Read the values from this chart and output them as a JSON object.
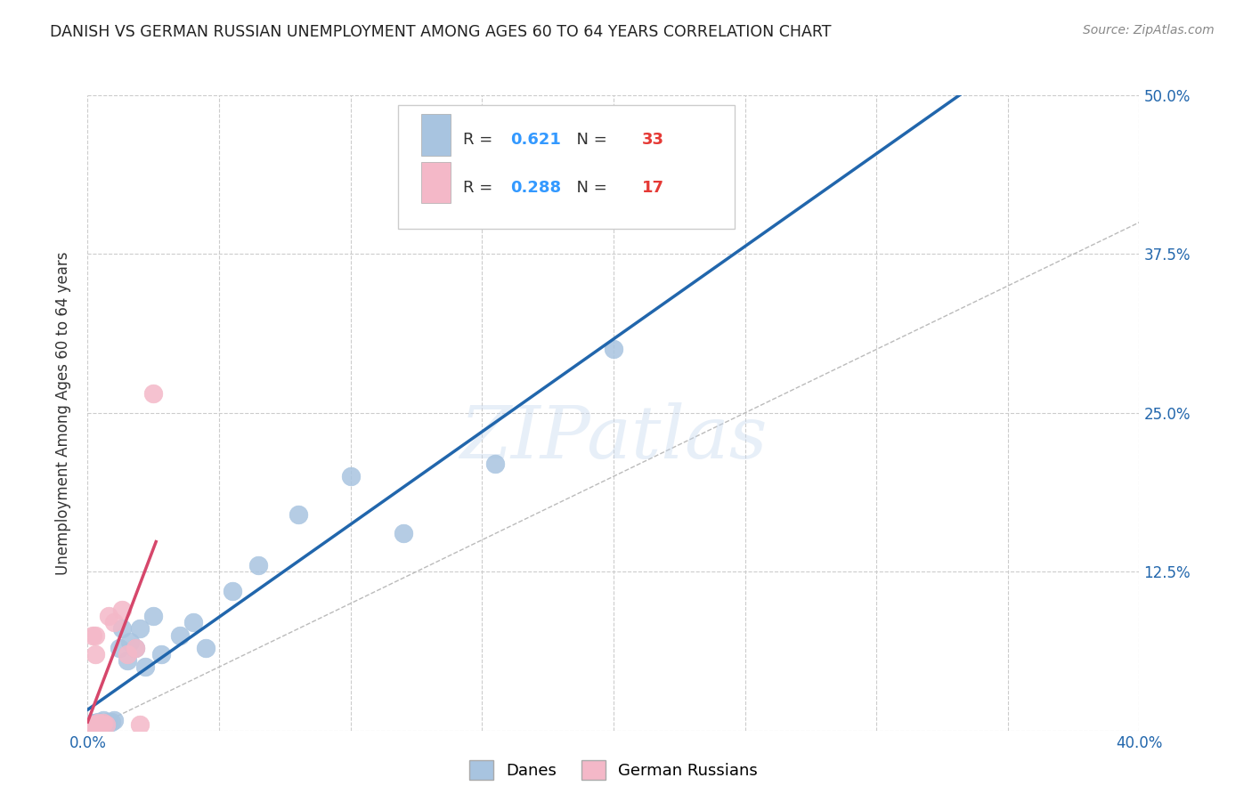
{
  "title": "DANISH VS GERMAN RUSSIAN UNEMPLOYMENT AMONG AGES 60 TO 64 YEARS CORRELATION CHART",
  "source": "Source: ZipAtlas.com",
  "ylabel": "Unemployment Among Ages 60 to 64 years",
  "xlim": [
    0.0,
    0.4
  ],
  "ylim": [
    0.0,
    0.5
  ],
  "xticks": [
    0.0,
    0.05,
    0.1,
    0.15,
    0.2,
    0.25,
    0.3,
    0.35,
    0.4
  ],
  "yticks": [
    0.0,
    0.125,
    0.25,
    0.375,
    0.5
  ],
  "blue_color": "#a8c4e0",
  "blue_line_color": "#2166ac",
  "pink_color": "#f4b8c8",
  "pink_line_color": "#d6476b",
  "danes_r": 0.621,
  "danes_n": 33,
  "german_r": 0.288,
  "german_n": 17,
  "danes_x": [
    0.002,
    0.002,
    0.003,
    0.003,
    0.004,
    0.004,
    0.004,
    0.005,
    0.006,
    0.006,
    0.007,
    0.008,
    0.009,
    0.01,
    0.012,
    0.013,
    0.015,
    0.016,
    0.018,
    0.02,
    0.022,
    0.025,
    0.028,
    0.035,
    0.04,
    0.045,
    0.055,
    0.065,
    0.08,
    0.1,
    0.12,
    0.155,
    0.2
  ],
  "danes_y": [
    0.004,
    0.006,
    0.004,
    0.006,
    0.004,
    0.005,
    0.007,
    0.006,
    0.005,
    0.008,
    0.006,
    0.007,
    0.007,
    0.008,
    0.065,
    0.08,
    0.055,
    0.07,
    0.065,
    0.08,
    0.05,
    0.09,
    0.06,
    0.075,
    0.085,
    0.065,
    0.11,
    0.13,
    0.17,
    0.2,
    0.155,
    0.21,
    0.3
  ],
  "german_x": [
    0.001,
    0.002,
    0.002,
    0.003,
    0.003,
    0.004,
    0.004,
    0.005,
    0.006,
    0.007,
    0.008,
    0.01,
    0.013,
    0.015,
    0.018,
    0.02,
    0.025
  ],
  "german_y": [
    0.004,
    0.005,
    0.075,
    0.06,
    0.075,
    0.005,
    0.006,
    0.005,
    0.006,
    0.005,
    0.09,
    0.085,
    0.095,
    0.06,
    0.065,
    0.005,
    0.265
  ],
  "watermark": "ZIPatlas",
  "bg_color": "#ffffff",
  "grid_color": "#cccccc",
  "diag_color": "#bbbbbb"
}
